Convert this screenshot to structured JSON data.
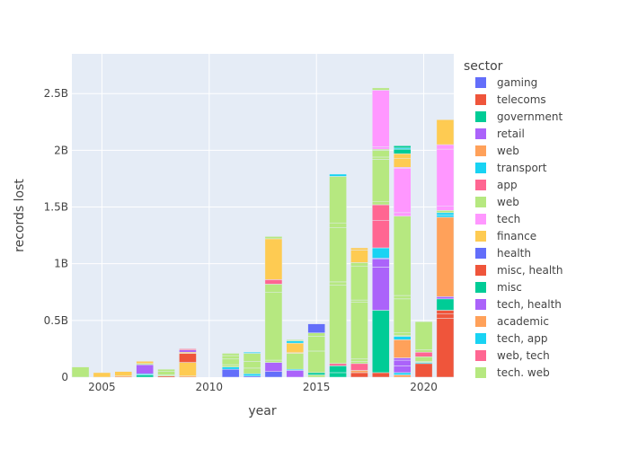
{
  "chart_data": {
    "type": "bar",
    "barmode": "stack",
    "xlabel": "year",
    "ylabel": "records lost",
    "xlim": [
      2003.6,
      2021.4
    ],
    "ylim": [
      0,
      2.85
    ],
    "x_ticks": [
      2005,
      2010,
      2015,
      2020
    ],
    "y_ticks": [
      {
        "value": 0,
        "label": "0"
      },
      {
        "value": 0.5,
        "label": "0.5B"
      },
      {
        "value": 1,
        "label": "1B"
      },
      {
        "value": 1.5,
        "label": "1.5B"
      },
      {
        "value": 2,
        "label": "2B"
      },
      {
        "value": 2.5,
        "label": "2.5B"
      }
    ],
    "value_unit": "billions of records",
    "legend": {
      "title": "sector",
      "placement": "right",
      "items": [
        {
          "name": "gaming",
          "color": "#636efa"
        },
        {
          "name": "telecoms",
          "color": "#EF553B"
        },
        {
          "name": "government",
          "color": "#00cc96"
        },
        {
          "name": "retail",
          "color": "#ab63fa"
        },
        {
          "name": "web",
          "color": "#FFA15A"
        },
        {
          "name": "transport",
          "color": "#19d3f3"
        },
        {
          "name": "app",
          "color": "#FF6692"
        },
        {
          "name": "web",
          "color": "#B6E880"
        },
        {
          "name": "tech",
          "color": "#FF97FF"
        },
        {
          "name": "finance",
          "color": "#FECB52"
        },
        {
          "name": "health",
          "color": "#636efa"
        },
        {
          "name": "misc, health",
          "color": "#EF553B"
        },
        {
          "name": "misc",
          "color": "#00cc96"
        },
        {
          "name": "tech, health",
          "color": "#ab63fa"
        },
        {
          "name": "academic",
          "color": "#FFA15A"
        },
        {
          "name": "tech, app",
          "color": "#19d3f3"
        },
        {
          "name": "web, tech",
          "color": "#FF6692"
        },
        {
          "name": "tech. web",
          "color": "#B6E880"
        }
      ]
    },
    "bars": [
      {
        "x": 2004,
        "segments": [
          [
            0.09,
            7
          ]
        ]
      },
      {
        "x": 2005,
        "segments": [
          [
            0.04,
            9
          ]
        ]
      },
      {
        "x": 2006,
        "segments": [
          [
            0.01,
            4
          ],
          [
            0.04,
            9
          ]
        ]
      },
      {
        "x": 2007,
        "segments": [
          [
            0.02,
            2
          ],
          [
            0.01,
            5
          ],
          [
            0.08,
            3
          ],
          [
            0.01,
            7
          ],
          [
            0.02,
            9
          ]
        ]
      },
      {
        "x": 2008,
        "segments": [
          [
            0.01,
            1
          ],
          [
            0.01,
            7
          ],
          [
            0.03,
            7
          ],
          [
            0.02,
            7
          ]
        ]
      },
      {
        "x": 2009,
        "segments": [
          [
            0.01,
            4
          ],
          [
            0.12,
            9
          ],
          [
            0.08,
            1
          ],
          [
            0.01,
            9
          ],
          [
            0.02,
            3
          ],
          [
            0.01,
            6
          ]
        ]
      },
      {
        "x": 2011,
        "segments": [
          [
            0.07,
            0
          ],
          [
            0.02,
            5
          ],
          [
            0.02,
            7
          ],
          [
            0.05,
            7
          ],
          [
            0.03,
            7
          ],
          [
            0.02,
            7
          ]
        ]
      },
      {
        "x": 2012,
        "segments": [
          [
            0.01,
            0
          ],
          [
            0.02,
            5
          ],
          [
            0.05,
            7
          ],
          [
            0.06,
            7
          ],
          [
            0.07,
            7
          ],
          [
            0.01,
            5
          ]
        ]
      },
      {
        "x": 2013,
        "segments": [
          [
            0.05,
            0
          ],
          [
            0.08,
            3
          ],
          [
            0.02,
            7
          ],
          [
            0.6,
            7
          ],
          [
            0.07,
            7
          ],
          [
            0.04,
            6
          ],
          [
            0.36,
            9
          ],
          [
            0.02,
            7
          ]
        ]
      },
      {
        "x": 2014,
        "segments": [
          [
            0.06,
            3
          ],
          [
            0.01,
            5
          ],
          [
            0.14,
            7
          ],
          [
            0.01,
            9
          ],
          [
            0.08,
            9
          ],
          [
            0.02,
            5
          ],
          [
            0.01,
            7
          ]
        ]
      },
      {
        "x": 2015,
        "segments": [
          [
            0.02,
            7
          ],
          [
            0.02,
            2
          ],
          [
            0.19,
            7
          ],
          [
            0.13,
            7
          ],
          [
            0.03,
            7
          ],
          [
            0.08,
            0
          ]
        ]
      },
      {
        "x": 2016,
        "segments": [
          [
            0.04,
            2
          ],
          [
            0.06,
            2
          ],
          [
            0.02,
            6
          ],
          [
            0.69,
            7
          ],
          [
            0.03,
            7
          ],
          [
            0.48,
            7
          ],
          [
            0.04,
            7
          ],
          [
            0.41,
            7
          ],
          [
            0.02,
            5
          ]
        ]
      },
      {
        "x": 2017,
        "segments": [
          [
            0.04,
            1
          ],
          [
            0.02,
            4
          ],
          [
            0.06,
            6
          ],
          [
            0.02,
            7
          ],
          [
            0.02,
            7
          ],
          [
            0.5,
            7
          ],
          [
            0.02,
            7
          ],
          [
            0.3,
            7
          ],
          [
            0.03,
            7
          ],
          [
            0.11,
            9
          ],
          [
            0.02,
            9
          ]
        ]
      },
      {
        "x": 2018,
        "segments": [
          [
            0.04,
            1
          ],
          [
            0.55,
            2
          ],
          [
            0.38,
            3
          ],
          [
            0.07,
            3
          ],
          [
            0.01,
            0
          ],
          [
            0.09,
            5
          ],
          [
            0.24,
            6
          ],
          [
            0.14,
            6
          ],
          [
            0.03,
            7
          ],
          [
            0.37,
            7
          ],
          [
            0.02,
            7
          ],
          [
            0.06,
            7
          ],
          [
            0.01,
            7
          ],
          [
            0.02,
            8
          ],
          [
            0.5,
            8
          ],
          [
            0.02,
            7
          ]
        ]
      },
      {
        "x": 2019,
        "segments": [
          [
            0.02,
            4
          ],
          [
            0.02,
            5
          ],
          [
            0.06,
            3
          ],
          [
            0.05,
            3
          ],
          [
            0.02,
            3
          ],
          [
            0.16,
            4
          ],
          [
            0.03,
            5
          ],
          [
            0.01,
            7
          ],
          [
            0.02,
            7
          ],
          [
            0.3,
            7
          ],
          [
            0.03,
            7
          ],
          [
            0.7,
            7
          ],
          [
            0.03,
            8
          ],
          [
            0.39,
            8
          ],
          [
            0.01,
            8
          ],
          [
            0.08,
            9
          ],
          [
            0.04,
            9
          ],
          [
            0.04,
            2
          ],
          [
            0.01,
            5
          ],
          [
            0.02,
            2
          ]
        ]
      },
      {
        "x": 2020,
        "segments": [
          [
            0.12,
            1
          ],
          [
            0.01,
            5
          ],
          [
            0.01,
            7
          ],
          [
            0.04,
            7
          ],
          [
            0.04,
            6
          ],
          [
            0.02,
            7
          ],
          [
            0.25,
            7
          ]
        ]
      },
      {
        "x": 2021,
        "segments": [
          [
            0.52,
            1
          ],
          [
            0.04,
            1
          ],
          [
            0.03,
            1
          ],
          [
            0.1,
            2
          ],
          [
            0.02,
            3
          ],
          [
            0.7,
            4
          ],
          [
            0.02,
            5
          ],
          [
            0.02,
            5
          ],
          [
            0.02,
            7
          ],
          [
            0.04,
            8
          ],
          [
            0.5,
            8
          ],
          [
            0.04,
            8
          ],
          [
            0.22,
            9
          ]
        ]
      }
    ]
  }
}
